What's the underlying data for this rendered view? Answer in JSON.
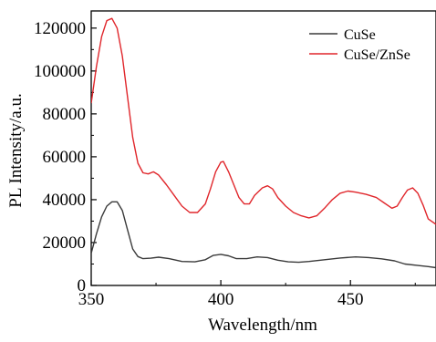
{
  "chart_data": {
    "type": "line",
    "xlabel": "Wavelength/nm",
    "ylabel": "PL Intensity/a.u.",
    "xlim": [
      350,
      483
    ],
    "ylim": [
      0,
      128000
    ],
    "xticks": [
      350,
      400,
      450
    ],
    "xtick_labels": [
      "350",
      "400",
      "450"
    ],
    "yticks": [
      0,
      20000,
      40000,
      60000,
      80000,
      100000,
      120000
    ],
    "ytick_labels": [
      "0",
      "20000",
      "40000",
      "60000",
      "80000",
      "100000",
      "120000"
    ],
    "legend_position": "top-right",
    "grid": false,
    "series": [
      {
        "name": "CuSe",
        "color": "#3a3a3a",
        "points": [
          [
            350,
            15000
          ],
          [
            352,
            24000
          ],
          [
            354,
            32000
          ],
          [
            356,
            37000
          ],
          [
            358,
            39000
          ],
          [
            360,
            39000
          ],
          [
            362,
            35000
          ],
          [
            364,
            26000
          ],
          [
            366,
            17000
          ],
          [
            368,
            13500
          ],
          [
            370,
            12500
          ],
          [
            373,
            12700
          ],
          [
            376,
            13200
          ],
          [
            380,
            12500
          ],
          [
            385,
            11200
          ],
          [
            390,
            11000
          ],
          [
            394,
            12000
          ],
          [
            397,
            14000
          ],
          [
            400,
            14500
          ],
          [
            403,
            13800
          ],
          [
            406,
            12500
          ],
          [
            410,
            12500
          ],
          [
            414,
            13300
          ],
          [
            418,
            13000
          ],
          [
            422,
            11800
          ],
          [
            426,
            11000
          ],
          [
            430,
            10800
          ],
          [
            434,
            11200
          ],
          [
            440,
            12000
          ],
          [
            446,
            12800
          ],
          [
            452,
            13300
          ],
          [
            457,
            13000
          ],
          [
            462,
            12400
          ],
          [
            467,
            11500
          ],
          [
            471,
            10000
          ],
          [
            476,
            9300
          ],
          [
            480,
            8800
          ],
          [
            483,
            8300
          ]
        ]
      },
      {
        "name": "CuSe/ZnSe",
        "color": "#e0262b",
        "points": [
          [
            350,
            85000
          ],
          [
            352,
            102000
          ],
          [
            354,
            116000
          ],
          [
            356,
            123500
          ],
          [
            358,
            124500
          ],
          [
            360,
            120000
          ],
          [
            362,
            107000
          ],
          [
            364,
            88000
          ],
          [
            366,
            69000
          ],
          [
            368,
            57000
          ],
          [
            370,
            52500
          ],
          [
            372,
            52000
          ],
          [
            374,
            53000
          ],
          [
            376,
            51500
          ],
          [
            379,
            47000
          ],
          [
            382,
            42000
          ],
          [
            385,
            37000
          ],
          [
            388,
            34000
          ],
          [
            391,
            34000
          ],
          [
            394,
            38000
          ],
          [
            396,
            45000
          ],
          [
            398,
            53000
          ],
          [
            400,
            57500
          ],
          [
            401,
            57800
          ],
          [
            403,
            53000
          ],
          [
            405,
            47000
          ],
          [
            407,
            41000
          ],
          [
            409,
            38000
          ],
          [
            411,
            38000
          ],
          [
            413,
            42000
          ],
          [
            416,
            45500
          ],
          [
            418,
            46500
          ],
          [
            420,
            45000
          ],
          [
            422,
            41000
          ],
          [
            425,
            37000
          ],
          [
            428,
            34000
          ],
          [
            431,
            32500
          ],
          [
            434,
            31500
          ],
          [
            437,
            32500
          ],
          [
            440,
            36000
          ],
          [
            443,
            40000
          ],
          [
            446,
            43000
          ],
          [
            449,
            44000
          ],
          [
            452,
            43500
          ],
          [
            456,
            42500
          ],
          [
            460,
            41000
          ],
          [
            463,
            38500
          ],
          [
            466,
            36000
          ],
          [
            468,
            37000
          ],
          [
            470,
            41000
          ],
          [
            472,
            44500
          ],
          [
            474,
            45500
          ],
          [
            476,
            43000
          ],
          [
            478,
            37500
          ],
          [
            480,
            31000
          ],
          [
            483,
            28500
          ]
        ]
      }
    ]
  }
}
